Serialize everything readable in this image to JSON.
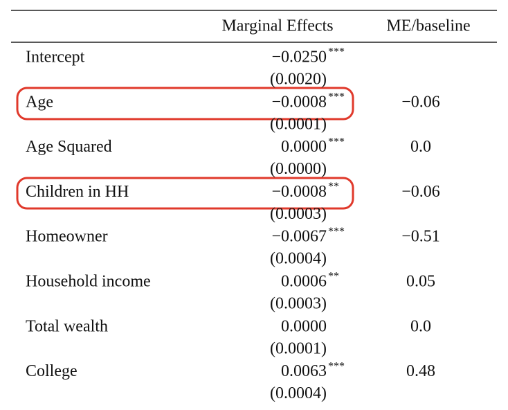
{
  "table": {
    "header": [
      "Marginal Effects",
      "ME/baseline"
    ],
    "rows": [
      {
        "label": "Intercept",
        "coef": "−0.0250",
        "stars": "***",
        "se": "(0.0020)"
      },
      {
        "label": "Age",
        "coef": "−0.0008",
        "stars": "***",
        "se": "(0.0001)",
        "ratio": "−0.06"
      },
      {
        "label": "Age Squared",
        "coef": "0.0000",
        "stars": "***",
        "se": "(0.0000)",
        "ratio": "0.0"
      },
      {
        "label": "Children in HH",
        "coef": "−0.0008",
        "stars": "**",
        "se": "(0.0003)",
        "ratio": "−0.06"
      },
      {
        "label": "Homeowner",
        "coef": "−0.0067",
        "stars": "***",
        "se": "(0.0004)",
        "ratio": "−0.51"
      },
      {
        "label": "Household income",
        "coef": "0.0006",
        "stars": "**",
        "se": "(0.0003)",
        "ratio": "0.05"
      },
      {
        "label": "Total wealth",
        "coef": "0.0000",
        "se": "(0.0001)",
        "ratio": "0.0"
      },
      {
        "label": "College",
        "coef": "0.0063",
        "stars": "***",
        "se": "(0.0004)",
        "ratio": "0.48"
      }
    ]
  }
}
